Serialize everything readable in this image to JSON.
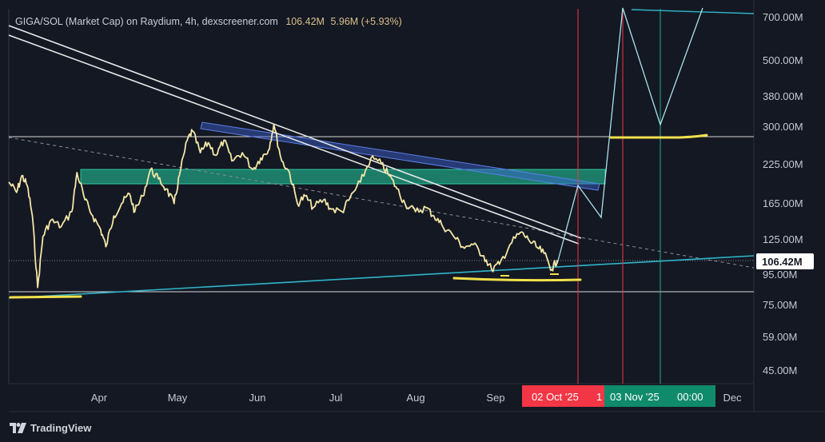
{
  "header": {
    "title": "GIGA/SOL (Market Cap) on Raydium, 4h, dexscreener.com",
    "value": "106.42M",
    "change": "5.96M (+5.93%)"
  },
  "branding": {
    "name": "TradingView",
    "logo_icon": "tradingview-logo-icon"
  },
  "colors": {
    "background": "#141823",
    "price": "#f3e6a6",
    "trend_white": "#e8e8e8",
    "support_cyan": "#2eb5c9",
    "resistance_blue": "#3d63d6",
    "zone_green": "#1f9e80",
    "highlight_yellow": "#f2e14b",
    "projection": "#a9e2ea",
    "date_red": "#f23645",
    "date_green": "#0f8b6c"
  },
  "chart_data": {
    "type": "line",
    "scale": "log",
    "title": "GIGA/SOL (Market Cap) on Raydium, 4h, dexscreener.com",
    "ylim": [
      40,
      780
    ],
    "y_unit": "M",
    "x_tick_labels": [
      "Apr",
      "May",
      "Jun",
      "Jul",
      "Aug",
      "Sep",
      "Dec"
    ],
    "y_tick_labels": [
      "700.00M",
      "500.00M",
      "380.00M",
      "300.00M",
      "225.00M",
      "165.00M",
      "125.00M",
      "95.00M",
      "75.00M",
      "59.00M",
      "45.00M"
    ],
    "last_value_label": "106.42M",
    "date_markers": [
      {
        "label": "02 Oct '25",
        "color": "#f23645"
      },
      {
        "label": "1",
        "color": "#f23645"
      },
      {
        "label": "03 Nov '25",
        "color": "#0f8b6c"
      },
      {
        "label": "00:00",
        "color": "#0f8b6c"
      }
    ],
    "series": [
      {
        "values": [
          [
            "2025-03-01",
            195
          ],
          [
            "2025-03-04",
            180
          ],
          [
            "2025-03-06",
            205
          ],
          [
            "2025-03-08",
            190
          ],
          [
            "2025-03-10",
            150
          ],
          [
            "2025-03-12",
            86
          ],
          [
            "2025-03-14",
            128
          ],
          [
            "2025-03-17",
            145
          ],
          [
            "2025-03-21",
            138
          ],
          [
            "2025-03-25",
            155
          ],
          [
            "2025-03-27",
            210
          ],
          [
            "2025-03-30",
            170
          ],
          [
            "2025-04-02",
            150
          ],
          [
            "2025-04-05",
            135
          ],
          [
            "2025-04-07",
            118
          ],
          [
            "2025-04-10",
            150
          ],
          [
            "2025-04-13",
            165
          ],
          [
            "2025-04-16",
            178
          ],
          [
            "2025-04-18",
            155
          ],
          [
            "2025-04-21",
            175
          ],
          [
            "2025-04-24",
            215
          ],
          [
            "2025-04-27",
            200
          ],
          [
            "2025-04-30",
            185
          ],
          [
            "2025-05-03",
            165
          ],
          [
            "2025-05-05",
            205
          ],
          [
            "2025-05-08",
            270
          ],
          [
            "2025-05-10",
            290
          ],
          [
            "2025-05-13",
            245
          ],
          [
            "2025-05-16",
            265
          ],
          [
            "2025-05-19",
            240
          ],
          [
            "2025-05-22",
            270
          ],
          [
            "2025-05-25",
            230
          ],
          [
            "2025-05-29",
            245
          ],
          [
            "2025-06-02",
            215
          ],
          [
            "2025-06-05",
            235
          ],
          [
            "2025-06-08",
            250
          ],
          [
            "2025-06-10",
            305
          ],
          [
            "2025-06-13",
            230
          ],
          [
            "2025-06-16",
            210
          ],
          [
            "2025-06-19",
            165
          ],
          [
            "2025-06-22",
            175
          ],
          [
            "2025-06-25",
            160
          ],
          [
            "2025-06-29",
            170
          ],
          [
            "2025-07-02",
            158
          ],
          [
            "2025-07-06",
            155
          ],
          [
            "2025-07-09",
            172
          ],
          [
            "2025-07-13",
            195
          ],
          [
            "2025-07-17",
            235
          ],
          [
            "2025-07-21",
            225
          ],
          [
            "2025-07-24",
            205
          ],
          [
            "2025-07-27",
            185
          ],
          [
            "2025-07-30",
            165
          ],
          [
            "2025-08-03",
            155
          ],
          [
            "2025-08-07",
            160
          ],
          [
            "2025-08-10",
            150
          ],
          [
            "2025-08-13",
            140
          ],
          [
            "2025-08-17",
            130
          ],
          [
            "2025-08-21",
            118
          ],
          [
            "2025-08-25",
            120
          ],
          [
            "2025-08-29",
            110
          ],
          [
            "2025-09-01",
            99
          ],
          [
            "2025-09-04",
            103
          ],
          [
            "2025-09-08",
            120
          ],
          [
            "2025-09-12",
            132
          ],
          [
            "2025-09-15",
            125
          ],
          [
            "2025-09-18",
            118
          ],
          [
            "2025-09-21",
            112
          ],
          [
            "2025-09-24",
            99
          ],
          [
            "2025-09-26",
            106.42
          ]
        ]
      }
    ]
  }
}
